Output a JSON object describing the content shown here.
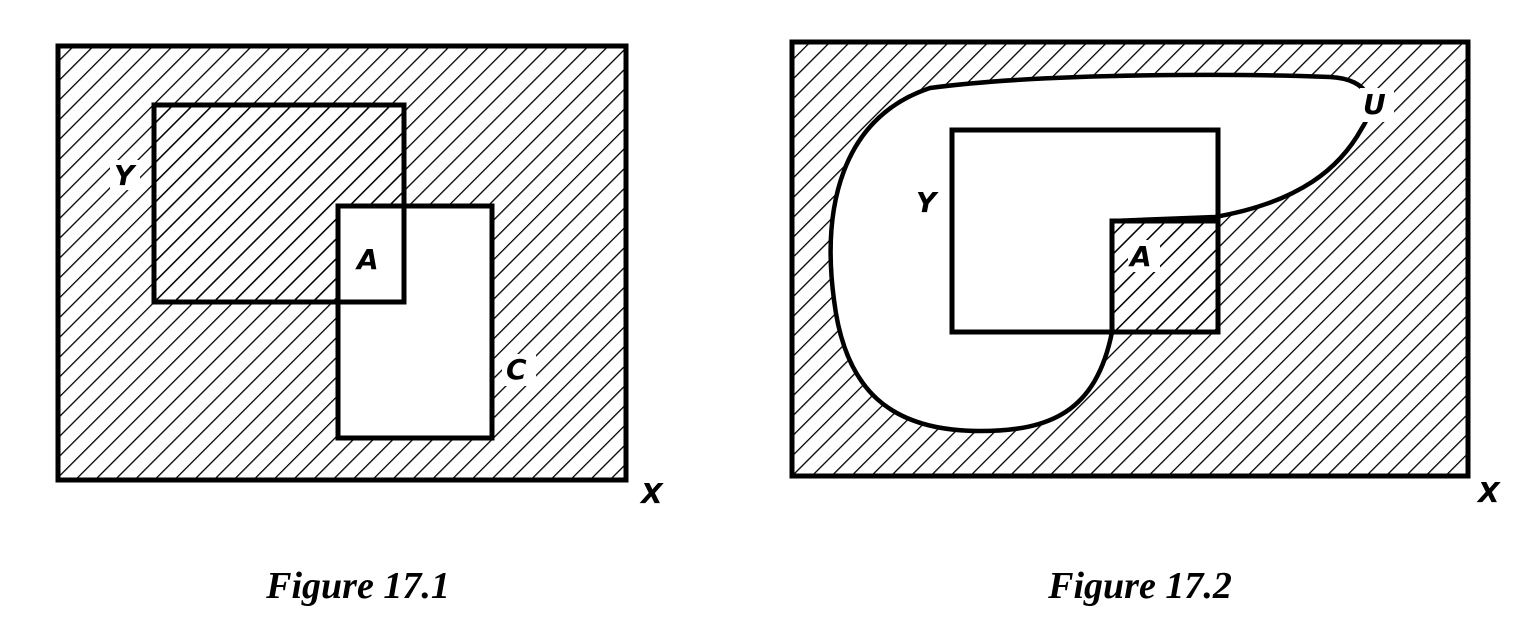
{
  "figures": [
    {
      "caption": "Figure 17.1",
      "labels": {
        "outer": "X",
        "set_y": "Y",
        "set_a": "A",
        "set_c": "C"
      }
    },
    {
      "caption": "Figure 17.2",
      "labels": {
        "outer": "X",
        "set_y": "Y",
        "set_a": "A",
        "set_u": "U"
      }
    }
  ]
}
